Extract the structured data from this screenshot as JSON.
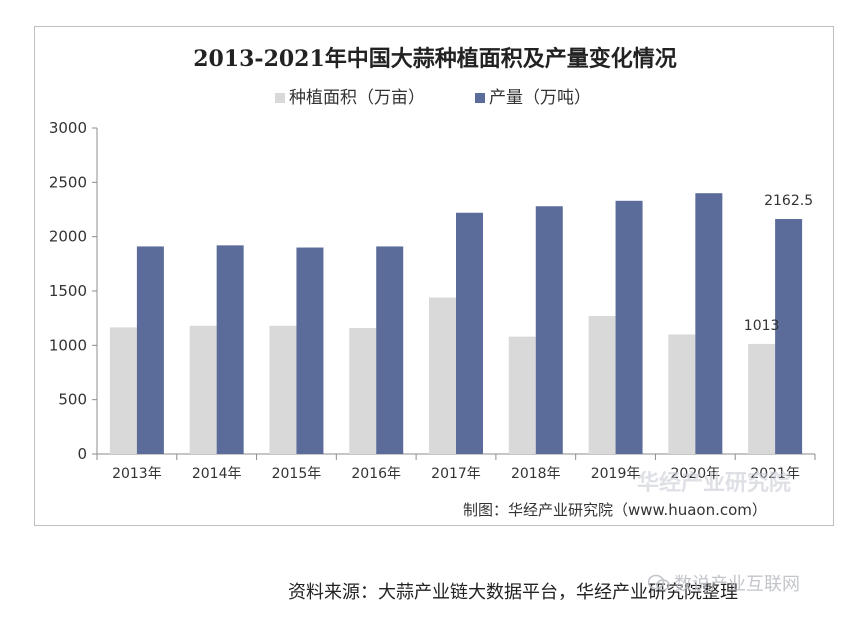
{
  "chart_data": {
    "type": "bar",
    "title": "2013-2021年中国大蒜种植面积及产量变化情况",
    "categories": [
      "2013年",
      "2014年",
      "2015年",
      "2016年",
      "2017年",
      "2018年",
      "2019年",
      "2020年",
      "2021年"
    ],
    "series": [
      {
        "name": "种植面积（万亩）",
        "color": "#d9d9d9",
        "values": [
          1165,
          1180,
          1180,
          1160,
          1440,
          1080,
          1270,
          1100,
          1013
        ]
      },
      {
        "name": "产量（万吨）",
        "color": "#5b6b9a",
        "values": [
          1910,
          1920,
          1900,
          1910,
          2220,
          2280,
          2330,
          2400,
          2162.5
        ]
      }
    ],
    "data_labels": [
      {
        "series": 0,
        "index": 8,
        "text": "1013"
      },
      {
        "series": 1,
        "index": 8,
        "text": "2162.5"
      }
    ],
    "ylim": [
      0,
      3000
    ],
    "yticks": [
      0,
      500,
      1000,
      1500,
      2000,
      2500,
      3000
    ],
    "legend_position": "top",
    "grid": false
  },
  "credit": "制图：华经产业研究院（www.huaon.com）",
  "watermark": "华经产业研究院",
  "source_note": "资料来源：大蒜产业链大数据平台，华经产业研究院整理",
  "wechat_mark": "数说产业互联网"
}
